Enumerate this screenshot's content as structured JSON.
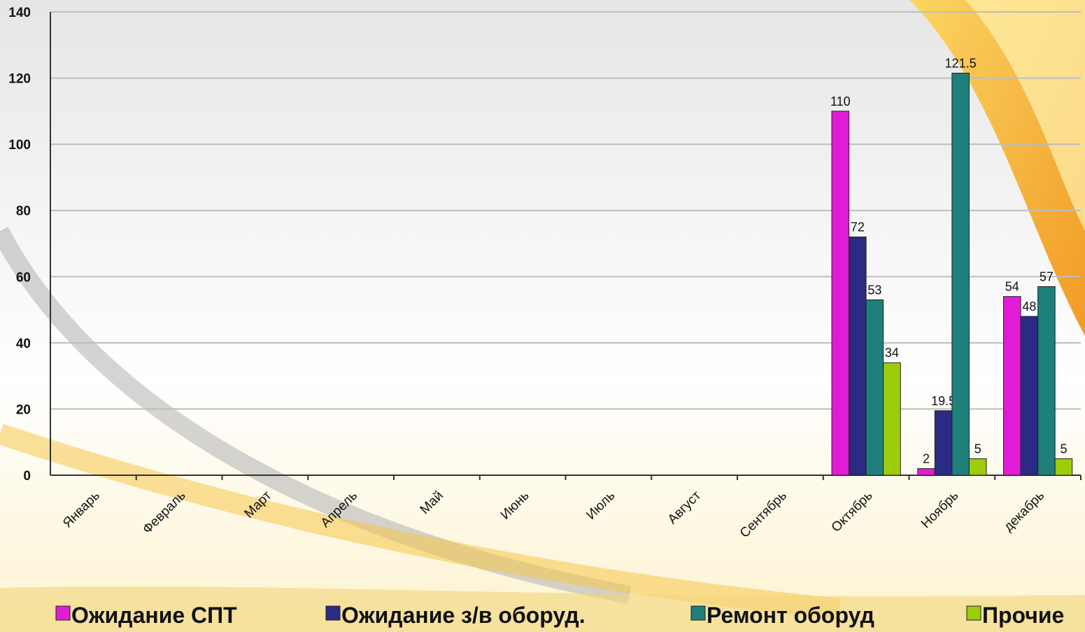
{
  "chart_data": {
    "type": "bar",
    "categories": [
      "Январь",
      "Февраль",
      "Март",
      "Апрель",
      "Май",
      "Июнь",
      "Июль",
      "Август",
      "Сентябрь",
      "Октябрь",
      "Ноябрь",
      "декабрь"
    ],
    "series": [
      {
        "name": "Ожидание СПТ",
        "color": "#e21cd6",
        "values": [
          null,
          null,
          null,
          null,
          null,
          null,
          null,
          null,
          null,
          110,
          2,
          54
        ]
      },
      {
        "name": "Ожидание з/в оборуд.",
        "color": "#2b2a85",
        "values": [
          null,
          null,
          null,
          null,
          null,
          null,
          null,
          null,
          null,
          72,
          19.5,
          48
        ]
      },
      {
        "name": "Ремонт оборуд",
        "color": "#1e7f7b",
        "values": [
          null,
          null,
          null,
          null,
          null,
          null,
          null,
          null,
          null,
          53,
          121.5,
          57
        ]
      },
      {
        "name": "Прочие",
        "color": "#9ccc0a",
        "values": [
          null,
          null,
          null,
          null,
          null,
          null,
          null,
          null,
          null,
          34,
          5,
          5
        ]
      }
    ],
    "ylim": [
      0,
      140
    ],
    "yticks": [
      0,
      20,
      40,
      60,
      80,
      100,
      120,
      140
    ],
    "grid": true,
    "legend": "bottom"
  }
}
